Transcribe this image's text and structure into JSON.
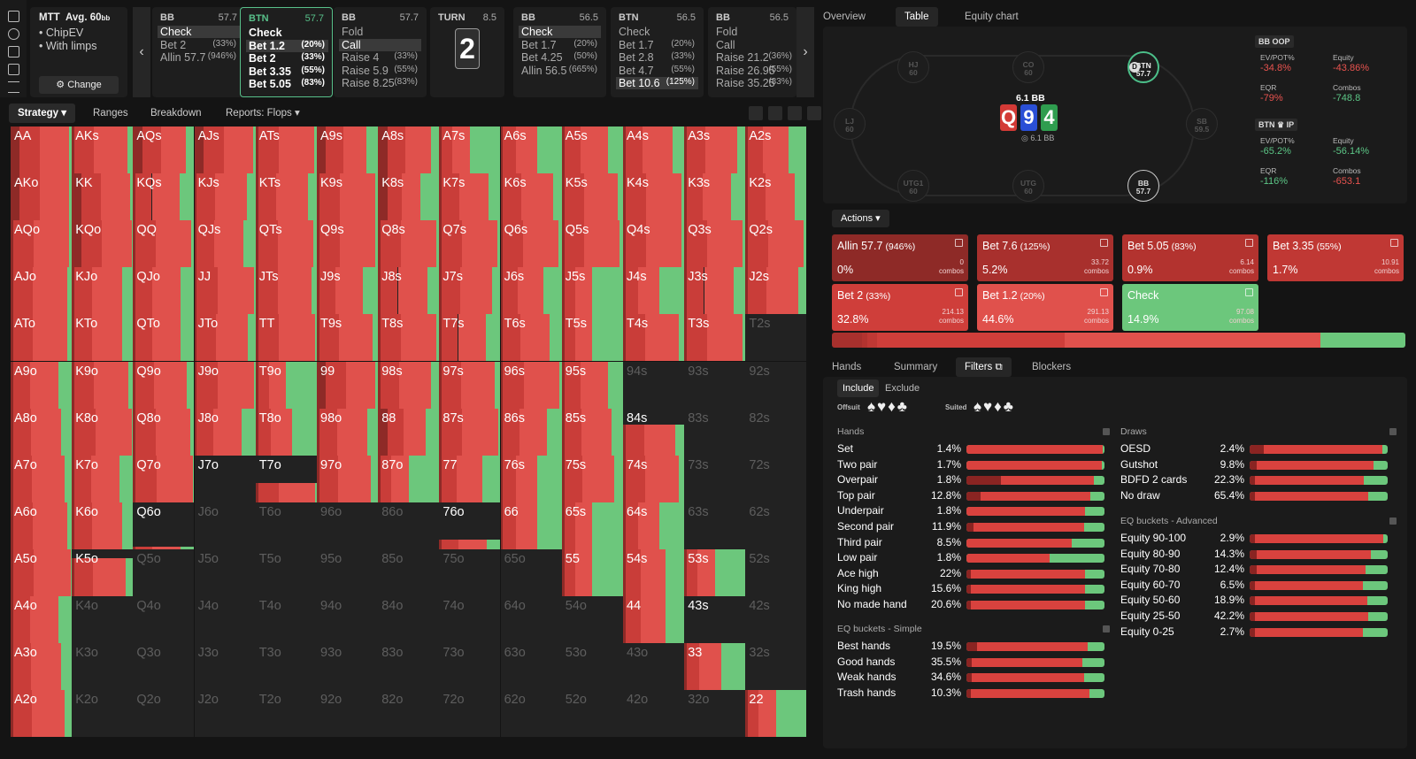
{
  "header": {
    "mtt": {
      "title": "MTT",
      "avg": "Avg. 60",
      "avg_unit": "bb",
      "items": [
        "ChipEV",
        "With limps"
      ],
      "change_label": "Change"
    },
    "nodes": [
      {
        "pos": "BB",
        "stack": "57.7",
        "actions": [
          {
            "l": "Check",
            "p": "",
            "sel": true
          },
          {
            "l": "Bet 2",
            "p": "(33%)"
          },
          {
            "l": "Allin 57.7",
            "p": "(946%)"
          }
        ]
      },
      {
        "pos": "BTN",
        "stack": "57.7",
        "active": true,
        "actions": [
          {
            "l": "Check",
            "p": ""
          },
          {
            "l": "Bet 1.2",
            "p": "(20%)",
            "sel": true
          },
          {
            "l": "Bet 2",
            "p": "(33%)"
          },
          {
            "l": "Bet 3.35",
            "p": "(55%)"
          },
          {
            "l": "Bet 5.05",
            "p": "(83%)"
          }
        ]
      },
      {
        "pos": "BB",
        "stack": "57.7",
        "actions": [
          {
            "l": "Fold",
            "p": ""
          },
          {
            "l": "Call",
            "p": "",
            "sel": true
          },
          {
            "l": "Raise 4",
            "p": "(33%)"
          },
          {
            "l": "Raise 5.9",
            "p": "(55%)"
          },
          {
            "l": "Raise 8.25",
            "p": "(83%)"
          }
        ]
      },
      {
        "pos": "BB",
        "stack": "56.5",
        "actions": [
          {
            "l": "Check",
            "p": "",
            "sel": true
          },
          {
            "l": "Bet 1.7",
            "p": "(20%)"
          },
          {
            "l": "Bet 4.25",
            "p": "(50%)"
          },
          {
            "l": "Allin 56.5",
            "p": "(665%)"
          }
        ]
      },
      {
        "pos": "BTN",
        "stack": "56.5",
        "actions": [
          {
            "l": "Check",
            "p": ""
          },
          {
            "l": "Bet 1.7",
            "p": "(20%)"
          },
          {
            "l": "Bet 2.8",
            "p": "(33%)"
          },
          {
            "l": "Bet 4.7",
            "p": "(55%)"
          },
          {
            "l": "Bet 10.6",
            "p": "(125%)",
            "sel": true
          }
        ]
      },
      {
        "pos": "BB",
        "stack": "56.5",
        "actions": [
          {
            "l": "Fold",
            "p": ""
          },
          {
            "l": "Call",
            "p": ""
          },
          {
            "l": "Raise 21.2",
            "p": "(36%)"
          },
          {
            "l": "Raise 26.95",
            "p": "(55%)"
          },
          {
            "l": "Raise 35.25",
            "p": "(83%)"
          }
        ]
      }
    ],
    "turn": {
      "label": "TURN",
      "pot": "8.5",
      "card": "2"
    },
    "prev_arrow": "‹",
    "next_arrow": "›"
  },
  "toolbar": {
    "strategy": "Strategy ▾",
    "ranges": "Ranges",
    "breakdown": "Breakdown",
    "reports": "Reports: Flops ▾"
  },
  "grid": {
    "hands": [
      [
        "AA",
        "AKs",
        "AQs",
        "AJs",
        "ATs",
        "A9s",
        "A8s",
        "A7s",
        "A6s",
        "A5s",
        "A4s",
        "A3s",
        "A2s"
      ],
      [
        "AKo",
        "KK",
        "KQs",
        "KJs",
        "KTs",
        "K9s",
        "K8s",
        "K7s",
        "K6s",
        "K5s",
        "K4s",
        "K3s",
        "K2s"
      ],
      [
        "AQo",
        "KQo",
        "QQ",
        "QJs",
        "QTs",
        "Q9s",
        "Q8s",
        "Q7s",
        "Q6s",
        "Q5s",
        "Q4s",
        "Q3s",
        "Q2s"
      ],
      [
        "AJo",
        "KJo",
        "QJo",
        "JJ",
        "JTs",
        "J9s",
        "J8s",
        "J7s",
        "J6s",
        "J5s",
        "J4s",
        "J3s",
        "J2s"
      ],
      [
        "ATo",
        "KTo",
        "QTo",
        "JTo",
        "TT",
        "T9s",
        "T8s",
        "T7s",
        "T6s",
        "T5s",
        "T4s",
        "T3s",
        "T2s"
      ],
      [
        "A9o",
        "K9o",
        "Q9o",
        "J9o",
        "T9o",
        "99",
        "98s",
        "97s",
        "96s",
        "95s",
        "94s",
        "93s",
        "92s"
      ],
      [
        "A8o",
        "K8o",
        "Q8o",
        "J8o",
        "T8o",
        "98o",
        "88",
        "87s",
        "86s",
        "85s",
        "84s",
        "83s",
        "82s"
      ],
      [
        "A7o",
        "K7o",
        "Q7o",
        "J7o",
        "T7o",
        "97o",
        "87o",
        "77",
        "76s",
        "75s",
        "74s",
        "73s",
        "72s"
      ],
      [
        "A6o",
        "K6o",
        "Q6o",
        "J6o",
        "T6o",
        "96o",
        "86o",
        "76o",
        "66",
        "65s",
        "64s",
        "63s",
        "62s"
      ],
      [
        "A5o",
        "K5o",
        "Q5o",
        "J5o",
        "T5o",
        "95o",
        "85o",
        "75o",
        "65o",
        "55",
        "54s",
        "53s",
        "52s"
      ],
      [
        "A4o",
        "K4o",
        "Q4o",
        "J4o",
        "T4o",
        "94o",
        "84o",
        "74o",
        "64o",
        "54o",
        "44",
        "43s",
        "42s"
      ],
      [
        "A3o",
        "K3o",
        "Q3o",
        "J3o",
        "T3o",
        "93o",
        "83o",
        "73o",
        "63o",
        "53o",
        "43o",
        "33",
        "32s"
      ],
      [
        "A2o",
        "K2o",
        "Q2o",
        "J2o",
        "T2o",
        "92o",
        "82o",
        "72o",
        "62o",
        "52o",
        "42o",
        "32o",
        "22"
      ]
    ],
    "out_of_range": [
      "T2s",
      "94s",
      "93s",
      "92s",
      "83s",
      "82s",
      "73s",
      "72s",
      "J6o",
      "T6o",
      "96o",
      "86o",
      "63s",
      "62s",
      "Q5o",
      "J5o",
      "T5o",
      "95o",
      "85o",
      "75o",
      "65o",
      "52s",
      "K4o",
      "Q4o",
      "J4o",
      "T4o",
      "94o",
      "84o",
      "74o",
      "64o",
      "54o",
      "42s",
      "K3o",
      "Q3o",
      "J3o",
      "T3o",
      "93o",
      "83o",
      "73o",
      "63o",
      "53o",
      "43o",
      "32s",
      "K2o",
      "Q2o",
      "J2o",
      "T2o",
      "92o",
      "82o",
      "72o",
      "62o",
      "52o",
      "42o",
      "32o"
    ],
    "partial": {
      "J7o": 0.0,
      "T7o": 0.4,
      "Q6o": 0.05,
      "76o": 0.2,
      "K5o": 0.8,
      "84s": 0.65,
      "43s": 0.0
    }
  },
  "right_tabs": [
    "Overview",
    "Table",
    "Equity chart"
  ],
  "table": {
    "seats": [
      {
        "name": "HJ",
        "stack": "60"
      },
      {
        "name": "CO",
        "stack": "60"
      },
      {
        "name": "BTN",
        "stack": "57.7"
      },
      {
        "name": "LJ",
        "stack": "60"
      },
      {
        "name": "SB",
        "stack": "59.5"
      },
      {
        "name": "UTG1",
        "stack": "60"
      },
      {
        "name": "UTG",
        "stack": "60"
      },
      {
        "name": "BB",
        "stack": "57.7"
      }
    ],
    "pot": "6.1 BB",
    "pot_sub": "6.1 BB",
    "board": [
      {
        "r": "Q",
        "c": "#d33a36"
      },
      {
        "r": "9",
        "c": "#2a4fd6"
      },
      {
        "r": "4",
        "c": "#2f9d4f"
      }
    ],
    "dealer": "D"
  },
  "stats": [
    {
      "hd": "BB OOP",
      "rows": [
        {
          "k": "EV/POT%",
          "v": "-34.8%",
          "c": "neg"
        },
        {
          "k": "Equity",
          "v": "-43.86%",
          "c": "neg"
        },
        {
          "k": "EQR",
          "v": "-79%",
          "c": "neg"
        },
        {
          "k": "Combos",
          "v": "-748.8",
          "c": "pos"
        }
      ]
    },
    {
      "hd": "BTN ♛ IP",
      "rows": [
        {
          "k": "EV/POT%",
          "v": "-65.2%",
          "c": "pos"
        },
        {
          "k": "Equity",
          "v": "-56.14%",
          "c": "pos"
        },
        {
          "k": "EQR",
          "v": "-116%",
          "c": "pos"
        },
        {
          "k": "Combos",
          "v": "-653.1",
          "c": "neg"
        }
      ]
    }
  ],
  "actions_label": "Actions ▾",
  "actions": [
    {
      "name": "Allin 57.7",
      "size": "(946%)",
      "freq": "0%",
      "combos": "0",
      "bg": "#8e2a27"
    },
    {
      "name": "Bet 7.6",
      "size": "(125%)",
      "freq": "5.2%",
      "combos": "33.72",
      "bg": "#a8302d"
    },
    {
      "name": "Bet 5.05",
      "size": "(83%)",
      "freq": "0.9%",
      "combos": "6.14",
      "bg": "#b3332f"
    },
    {
      "name": "Bet 3.35",
      "size": "(55%)",
      "freq": "1.7%",
      "combos": "10.91",
      "bg": "#c03834"
    },
    {
      "name": "Bet 2",
      "size": "(33%)",
      "freq": "32.8%",
      "combos": "214.13",
      "bg": "#cf3e3a"
    },
    {
      "name": "Bet 1.2",
      "size": "(20%)",
      "freq": "44.6%",
      "combos": "291.13",
      "bg": "#e0514c"
    },
    {
      "name": "Check",
      "size": "",
      "freq": "14.9%",
      "combos": "97.08",
      "bg": "#6cc77c"
    }
  ],
  "combos_word": "combos",
  "freqbar": [
    0.0,
    0.052,
    0.009,
    0.017,
    0.328,
    0.446,
    0.149
  ],
  "bottom_tabs": [
    "Hands",
    "Summary",
    "Filters",
    "Blockers"
  ],
  "filters": {
    "include": "Include",
    "exclude": "Exclude",
    "offsuit": "Offsuit",
    "suited": "Suited",
    "offsuit_glyphs": "♠♥♦♣",
    "suited_glyphs": "♠♥♦♣",
    "hands_hd": "Hands",
    "hands": [
      {
        "n": "Set",
        "p": "1.4%",
        "r": 0.99,
        "d": 0.0
      },
      {
        "n": "Two pair",
        "p": "1.7%",
        "r": 0.98,
        "d": 0.0
      },
      {
        "n": "Overpair",
        "p": "1.8%",
        "r": 0.92,
        "d": 0.25
      },
      {
        "n": "Top pair",
        "p": "12.8%",
        "r": 0.9,
        "d": 0.1
      },
      {
        "n": "Underpair",
        "p": "1.8%",
        "r": 0.86,
        "d": 0.0
      },
      {
        "n": "Second pair",
        "p": "11.9%",
        "r": 0.85,
        "d": 0.05
      },
      {
        "n": "Third pair",
        "p": "8.5%",
        "r": 0.76,
        "d": 0.0
      },
      {
        "n": "Low pair",
        "p": "1.8%",
        "r": 0.6,
        "d": 0.0
      },
      {
        "n": "Ace high",
        "p": "22%",
        "r": 0.86,
        "d": 0.03
      },
      {
        "n": "King high",
        "p": "15.6%",
        "r": 0.86,
        "d": 0.03
      },
      {
        "n": "No made hand",
        "p": "20.6%",
        "r": 0.86,
        "d": 0.03
      }
    ],
    "eqs_hd": "EQ buckets - Simple",
    "eqs": [
      {
        "n": "Best hands",
        "p": "19.5%",
        "r": 0.88,
        "d": 0.08
      },
      {
        "n": "Good hands",
        "p": "35.5%",
        "r": 0.84,
        "d": 0.04
      },
      {
        "n": "Weak hands",
        "p": "34.6%",
        "r": 0.85,
        "d": 0.04
      },
      {
        "n": "Trash hands",
        "p": "10.3%",
        "r": 0.89,
        "d": 0.03
      }
    ],
    "draws_hd": "Draws",
    "draws": [
      {
        "n": "OESD",
        "p": "2.4%",
        "r": 0.96,
        "d": 0.1
      },
      {
        "n": "Gutshot",
        "p": "9.8%",
        "r": 0.9,
        "d": 0.05
      },
      {
        "n": "BDFD 2 cards",
        "p": "22.3%",
        "r": 0.83,
        "d": 0.04
      },
      {
        "n": "No draw",
        "p": "65.4%",
        "r": 0.86,
        "d": 0.04
      }
    ],
    "eqa_hd": "EQ buckets - Advanced",
    "eqa": [
      {
        "n": "Equity 90-100",
        "p": "2.9%",
        "r": 0.97,
        "d": 0.04
      },
      {
        "n": "Equity 80-90",
        "p": "14.3%",
        "r": 0.88,
        "d": 0.05
      },
      {
        "n": "Equity 70-80",
        "p": "12.4%",
        "r": 0.84,
        "d": 0.05
      },
      {
        "n": "Equity 60-70",
        "p": "6.5%",
        "r": 0.82,
        "d": 0.04
      },
      {
        "n": "Equity 50-60",
        "p": "18.9%",
        "r": 0.85,
        "d": 0.04
      },
      {
        "n": "Equity 25-50",
        "p": "42.2%",
        "r": 0.86,
        "d": 0.04
      },
      {
        "n": "Equity 0-25",
        "p": "2.7%",
        "r": 0.82,
        "d": 0.04
      }
    ]
  }
}
